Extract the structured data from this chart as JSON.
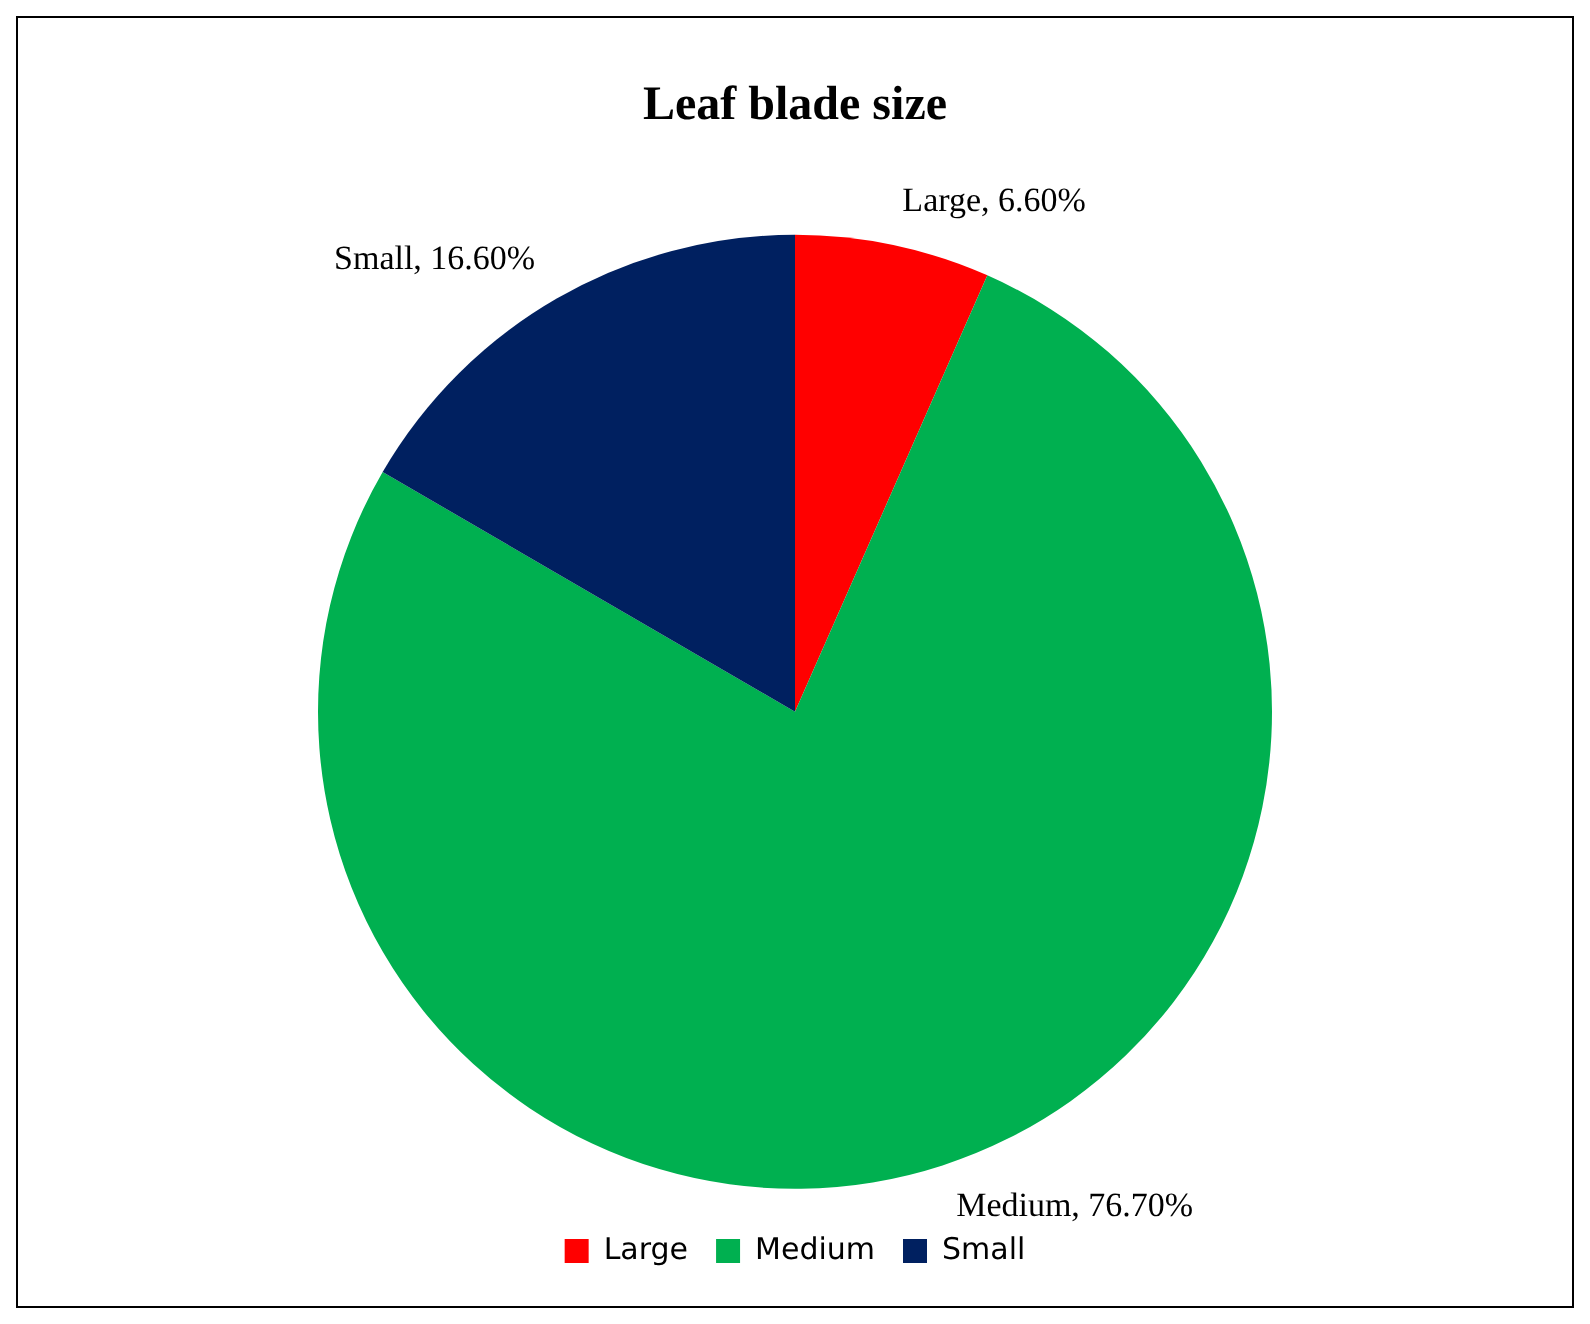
{
  "chart_data": {
    "type": "pie",
    "title": "Leaf blade size",
    "categories": [
      "Large",
      "Medium",
      "Small"
    ],
    "values": [
      6.6,
      76.7,
      16.6
    ],
    "colors": [
      "#ff0000",
      "#00b050",
      "#002060"
    ],
    "value_labels": [
      "Large, 6.60%",
      "Medium, 76.70%",
      "Small, 16.60%"
    ],
    "legend": "bottom"
  }
}
